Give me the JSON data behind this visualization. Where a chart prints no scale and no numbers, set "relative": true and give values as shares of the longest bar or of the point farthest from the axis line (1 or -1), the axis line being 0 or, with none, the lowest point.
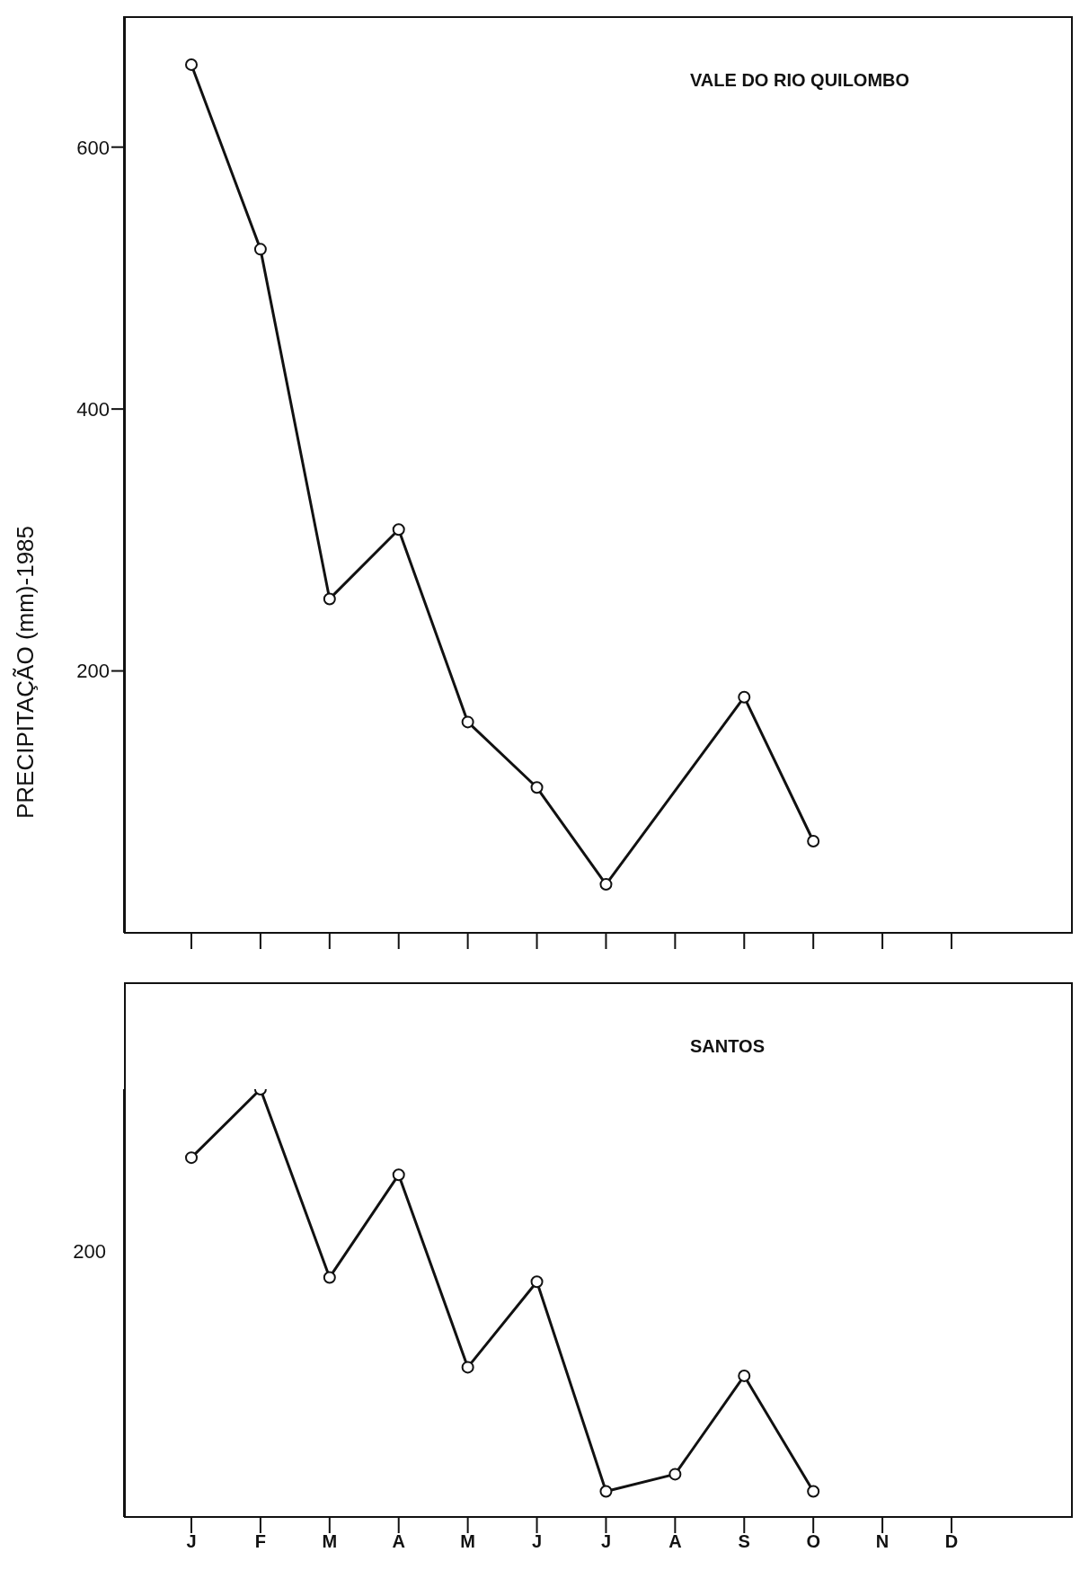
{
  "chart_data": [
    {
      "type": "line",
      "title": "VALE DO RIO QUILOMBO",
      "ylabel": "PRECIPITAÇÃO (mm)-1985",
      "categories": [
        null,
        null,
        null,
        null,
        null,
        null,
        null,
        null,
        null,
        null,
        null,
        null
      ],
      "series": [
        {
          "color": "#111111",
          "values": [
            663,
            522,
            255,
            308,
            161,
            111,
            37,
            null,
            180,
            70,
            null,
            null
          ]
        }
      ],
      "ylim": [
        0,
        700
      ],
      "yticks": [
        200,
        400,
        600
      ],
      "marker": "circle",
      "line_style": "solid"
    },
    {
      "type": "line",
      "title": "SANTOS",
      "categories": [
        "J",
        "F",
        "M",
        "A",
        "M",
        "J",
        "J",
        "A",
        "S",
        "O",
        "N",
        "D"
      ],
      "relative": true,
      "series": [
        {
          "color": "#111111",
          "values": [
            0.84,
            1,
            0.56,
            0.8,
            0.35,
            0.55,
            0.06,
            0.1,
            0.33,
            0.06,
            null,
            null
          ]
        }
      ],
      "annotations": [
        "200"
      ],
      "marker": "circle",
      "line_style": "solid"
    }
  ]
}
